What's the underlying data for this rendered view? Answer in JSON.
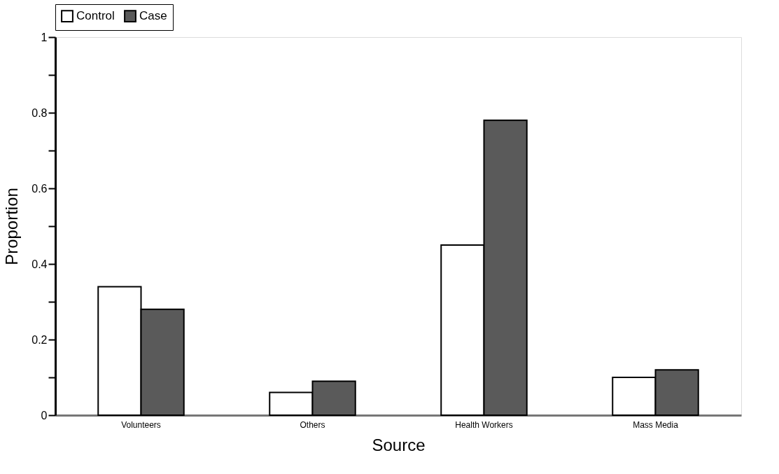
{
  "chart_data": {
    "type": "bar",
    "xlabel": "Source",
    "ylabel": "Proportion",
    "categories": [
      "Volunteers",
      "Others",
      "Health Workers",
      "Mass Media"
    ],
    "series": [
      {
        "name": "Control",
        "color": "#ffffff",
        "values": [
          0.34,
          0.06,
          0.45,
          0.1
        ]
      },
      {
        "name": "Case",
        "color": "#5a5a5a",
        "values": [
          0.28,
          0.09,
          0.78,
          0.12
        ]
      }
    ],
    "ylim": [
      0,
      1
    ],
    "yticks": [
      0,
      {
        "value": 0.1,
        "label": null
      },
      0.2,
      {
        "value": 0.3,
        "label": null
      },
      0.4,
      {
        "value": 0.5,
        "label": null
      },
      0.6,
      {
        "value": 0.7,
        "label": null
      },
      0.8,
      {
        "value": 0.9,
        "label": null
      },
      1
    ],
    "grid": false,
    "legend": "top"
  }
}
